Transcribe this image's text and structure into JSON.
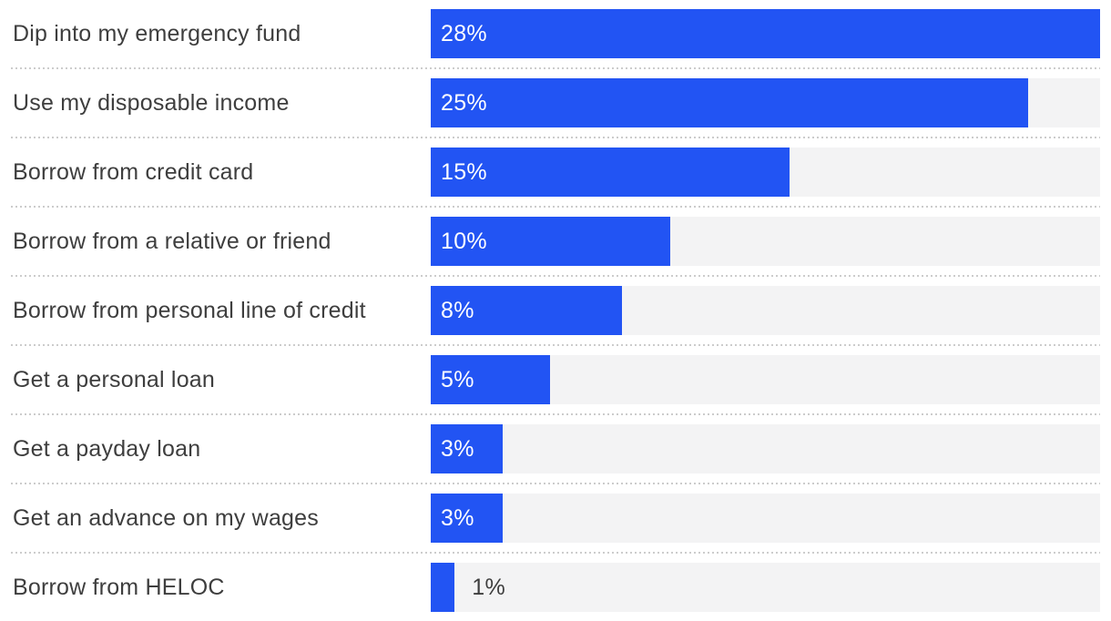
{
  "chart_data": {
    "type": "bar",
    "orientation": "horizontal",
    "title": "",
    "xlabel": "",
    "ylabel": "",
    "scale_max": 28,
    "grid": false,
    "legend": false,
    "categories": [
      "Dip into my emergency fund",
      "Use my disposable income",
      "Borrow from credit card",
      "Borrow from a relative or friend",
      "Borrow from personal line of credit",
      "Get a personal loan",
      "Get a payday loan",
      "Get an advance on my wages",
      "Borrow from HELOC"
    ],
    "values": [
      28,
      25,
      15,
      10,
      8,
      5,
      3,
      3,
      1
    ],
    "items": [
      {
        "label": "Dip into my emergency fund",
        "value": 28,
        "value_label": "28%",
        "value_position": "inside"
      },
      {
        "label": "Use my disposable income",
        "value": 25,
        "value_label": "25%",
        "value_position": "inside"
      },
      {
        "label": "Borrow from credit card",
        "value": 15,
        "value_label": "15%",
        "value_position": "inside"
      },
      {
        "label": "Borrow from a relative or friend",
        "value": 10,
        "value_label": "10%",
        "value_position": "inside"
      },
      {
        "label": "Borrow from personal line of credit",
        "value": 8,
        "value_label": "8%",
        "value_position": "inside"
      },
      {
        "label": "Get a personal loan",
        "value": 5,
        "value_label": "5%",
        "value_position": "inside"
      },
      {
        "label": "Get a payday loan",
        "value": 3,
        "value_label": "3%",
        "value_position": "inside"
      },
      {
        "label": "Get an advance on my wages",
        "value": 3,
        "value_label": "3%",
        "value_position": "inside"
      },
      {
        "label": "Borrow from HELOC",
        "value": 1,
        "value_label": "1%",
        "value_position": "outside"
      }
    ],
    "colors": {
      "bar_fill": "#2254F3",
      "bar_track": "#F3F3F4",
      "label_text": "#3E3E3E",
      "value_text_inside": "#FFFFFF",
      "value_text_outside": "#3E3E3E",
      "divider_dots": "#CCCCCC",
      "background": "#FFFFFF"
    }
  }
}
